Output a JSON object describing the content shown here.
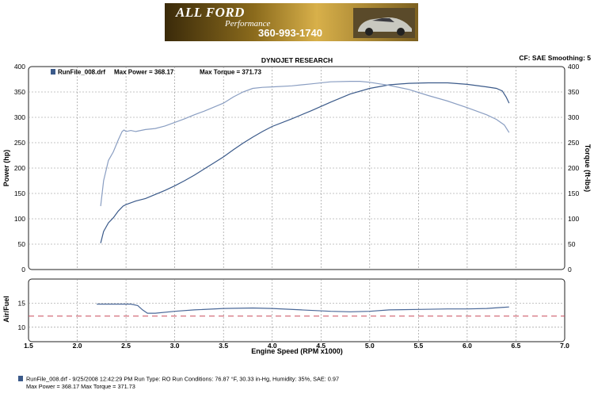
{
  "banner": {
    "brand": "ALL FORD",
    "tagline": "Performance",
    "phone": "360-993-1740"
  },
  "header": {
    "title": "DYNOJET RESEARCH",
    "cf": "CF: SAE  Smoothing: 5"
  },
  "legend": {
    "run_file": "RunFile_008.drf",
    "max_power": "Max Power = 368.17",
    "max_torque": "Max Torque = 371.73"
  },
  "footer": {
    "line1": "RunFile_008.drf - 9/25/2008 12:42:29 PM  Run Type: RO  Run Conditions: 76.87 °F, 30.33 in-Hg,  Humidity:  35%, SAE: 0.97",
    "line2": "Max Power = 368.17  Max Torque = 371.73"
  },
  "colors": {
    "power": "#3b5a8a",
    "torque": "#8a9ec2",
    "afr": "#4a6898",
    "target": "#c84a5a",
    "grid": "#8a8a8a"
  },
  "chart_data": [
    {
      "type": "line",
      "xlabel": "",
      "ylabel": "Power (hp)",
      "y2label": "Torque (ft-lbs)",
      "xlim": [
        1.5,
        7.0
      ],
      "ylim": [
        0,
        400
      ],
      "y2lim": [
        0,
        400
      ],
      "x_ticks": [
        "1.5",
        "2.0",
        "2.5",
        "3.0",
        "3.5",
        "4.0",
        "4.5",
        "5.0",
        "5.5",
        "6.0",
        "6.5",
        "7.0"
      ],
      "y_ticks": [
        "0",
        "50",
        "100",
        "150",
        "200",
        "250",
        "300",
        "350",
        "400"
      ],
      "grid": true,
      "series": [
        {
          "name": "",
          "axis": "left",
          "x": [
            2.24,
            2.27,
            2.32,
            2.37,
            2.42,
            2.47,
            2.5,
            2.6,
            2.7,
            2.8,
            2.9,
            3.0,
            3.1,
            3.2,
            3.3,
            3.4,
            3.5,
            3.6,
            3.7,
            3.8,
            3.9,
            4.0,
            4.2,
            4.4,
            4.6,
            4.8,
            5.0,
            5.2,
            5.4,
            5.6,
            5.8,
            6.0,
            6.2,
            6.3,
            6.36,
            6.4,
            6.43
          ],
          "y": [
            52,
            75,
            92,
            102,
            115,
            125,
            128,
            135,
            140,
            148,
            156,
            165,
            175,
            186,
            198,
            210,
            222,
            236,
            249,
            261,
            272,
            282,
            297,
            313,
            330,
            346,
            357,
            364,
            367,
            368,
            368,
            365,
            360,
            357,
            352,
            340,
            328
          ]
        },
        {
          "name": "",
          "axis": "right",
          "x": [
            2.24,
            2.27,
            2.32,
            2.37,
            2.42,
            2.46,
            2.48,
            2.5,
            2.55,
            2.6,
            2.7,
            2.8,
            2.9,
            3.0,
            3.1,
            3.2,
            3.3,
            3.4,
            3.5,
            3.6,
            3.7,
            3.8,
            3.9,
            4.0,
            4.2,
            4.4,
            4.6,
            4.8,
            4.9,
            5.0,
            5.2,
            5.4,
            5.6,
            5.8,
            6.0,
            6.2,
            6.3,
            6.38,
            6.43
          ],
          "y": [
            125,
            175,
            215,
            232,
            255,
            272,
            275,
            272,
            274,
            272,
            276,
            278,
            283,
            290,
            297,
            305,
            312,
            320,
            328,
            340,
            350,
            357,
            359,
            360,
            362,
            366,
            370,
            371,
            371,
            369,
            363,
            355,
            343,
            332,
            319,
            305,
            296,
            285,
            270
          ]
        }
      ]
    },
    {
      "type": "line",
      "xlabel": "Engine Speed (RPM x1000)",
      "ylabel": "Air/Fuel",
      "xlim": [
        1.5,
        7.0
      ],
      "ylim": [
        7,
        20
      ],
      "x_ticks": [
        "1.5",
        "2.0",
        "2.5",
        "3.0",
        "3.5",
        "4.0",
        "4.5",
        "5.0",
        "5.5",
        "6.0",
        "6.5",
        "7.0"
      ],
      "y_ticks": [
        "10",
        "15"
      ],
      "grid": true,
      "series": [
        {
          "name": "",
          "x": [
            2.2,
            2.4,
            2.55,
            2.62,
            2.67,
            2.72,
            2.8,
            3.0,
            3.2,
            3.5,
            3.8,
            4.0,
            4.3,
            4.6,
            4.8,
            5.0,
            5.2,
            5.5,
            5.8,
            6.0,
            6.2,
            6.43
          ],
          "y": [
            14.8,
            14.8,
            14.8,
            14.5,
            13.6,
            12.9,
            12.9,
            13.3,
            13.6,
            13.9,
            14.0,
            13.9,
            13.6,
            13.3,
            13.2,
            13.3,
            13.6,
            13.7,
            13.8,
            13.8,
            13.9,
            14.2
          ]
        },
        {
          "name": "",
          "style": "dashed",
          "x": [
            1.5,
            7.0
          ],
          "y": [
            12.3,
            12.3
          ]
        }
      ]
    }
  ]
}
